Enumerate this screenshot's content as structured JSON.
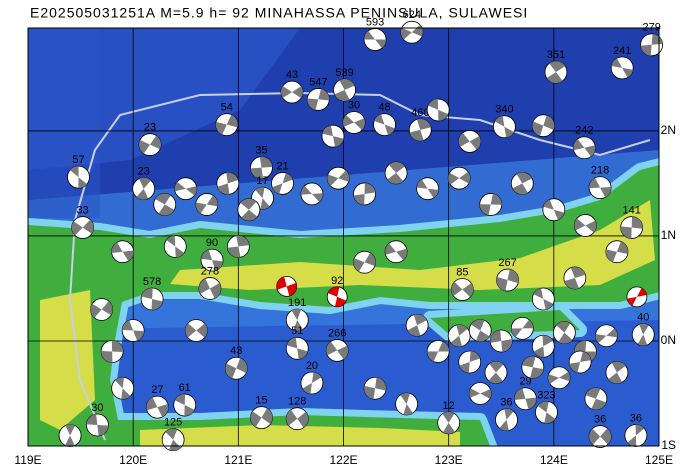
{
  "title": "E202505031251A M=5.9 h= 92 MINAHASSA PENINSULA, SULAWESI",
  "map": {
    "xlim": [
      119,
      125
    ],
    "ylim": [
      -1,
      2.98
    ],
    "xticks": [
      {
        "value": 119,
        "label": "119E"
      },
      {
        "value": 120,
        "label": "120E"
      },
      {
        "value": 121,
        "label": "121E"
      },
      {
        "value": 122,
        "label": "122E"
      },
      {
        "value": 123,
        "label": "123E"
      },
      {
        "value": 124,
        "label": "124E"
      },
      {
        "value": 125,
        "label": "125E"
      }
    ],
    "yticks": [
      {
        "value": 2,
        "label": "2N"
      },
      {
        "value": 1,
        "label": "1N"
      },
      {
        "value": 0,
        "label": "0N"
      },
      {
        "value": -1,
        "label": "1S"
      }
    ],
    "grid": true
  },
  "events": [
    {
      "lon": 122.3,
      "lat": 2.87,
      "depth": 593
    },
    {
      "lon": 122.65,
      "lat": 2.94,
      "depth": 624
    },
    {
      "lon": 124.93,
      "lat": 2.82,
      "depth": 279
    },
    {
      "lon": 124.02,
      "lat": 2.56,
      "depth": 351
    },
    {
      "lon": 124.65,
      "lat": 2.6,
      "depth": 241
    },
    {
      "lon": 121.51,
      "lat": 2.37,
      "depth": 43
    },
    {
      "lon": 121.76,
      "lat": 2.3,
      "depth": 547
    },
    {
      "lon": 122.01,
      "lat": 2.39,
      "depth": 539
    },
    {
      "lon": 122.39,
      "lat": 2.06,
      "depth": 48
    },
    {
      "lon": 122.1,
      "lat": 2.08,
      "depth": 30
    },
    {
      "lon": 120.89,
      "lat": 2.06,
      "depth": 54
    },
    {
      "lon": 122.73,
      "lat": 2.01,
      "depth": 460
    },
    {
      "lon": 123.53,
      "lat": 2.04,
      "depth": 340
    },
    {
      "lon": 124.29,
      "lat": 1.84,
      "depth": 242
    },
    {
      "lon": 120.16,
      "lat": 1.87,
      "depth": 23
    },
    {
      "lon": 121.22,
      "lat": 1.65,
      "depth": 35
    },
    {
      "lon": 119.48,
      "lat": 1.56,
      "depth": 57
    },
    {
      "lon": 124.44,
      "lat": 1.46,
      "depth": 218
    },
    {
      "lon": 119.52,
      "lat": 1.08,
      "depth": 33
    },
    {
      "lon": 124.74,
      "lat": 1.08,
      "depth": 141
    },
    {
      "lon": 121.23,
      "lat": 1.36,
      "depth": 17
    },
    {
      "lon": 120.75,
      "lat": 0.77,
      "depth": 90
    },
    {
      "lon": 123.13,
      "lat": 0.49,
      "depth": 85
    },
    {
      "lon": 123.56,
      "lat": 0.58,
      "depth": 267
    },
    {
      "lon": 121.56,
      "lat": 0.2,
      "depth": 191
    },
    {
      "lon": 121.56,
      "lat": -0.07,
      "depth": 51
    },
    {
      "lon": 121.94,
      "lat": -0.09,
      "depth": 266
    },
    {
      "lon": 120.98,
      "lat": -0.26,
      "depth": 43
    },
    {
      "lon": 124.85,
      "lat": 0.06,
      "depth": 40
    },
    {
      "lon": 120.49,
      "lat": -0.61,
      "depth": 61
    },
    {
      "lon": 120.23,
      "lat": -0.63,
      "depth": 27
    },
    {
      "lon": 121.22,
      "lat": -0.73,
      "depth": 15
    },
    {
      "lon": 123.55,
      "lat": -0.75,
      "depth": 36
    },
    {
      "lon": 123.93,
      "lat": -0.68,
      "depth": 323
    },
    {
      "lon": 123.73,
      "lat": -0.55,
      "depth": 29
    },
    {
      "lon": 124.44,
      "lat": -0.91,
      "depth": 36
    },
    {
      "lon": 124.78,
      "lat": -0.9,
      "depth": 36
    },
    {
      "lon": 120.38,
      "lat": -0.94,
      "depth": 125
    },
    {
      "lon": 119.66,
      "lat": -0.8,
      "depth": 30
    },
    {
      "lon": 121.56,
      "lat": -0.74,
      "depth": 128
    },
    {
      "lon": 121.7,
      "lat": -0.4,
      "depth": 20
    },
    {
      "lon": 123.0,
      "lat": -0.78,
      "depth": 12
    },
    {
      "lon": 120.18,
      "lat": 0.4,
      "depth": 578
    },
    {
      "lon": 120.73,
      "lat": 0.5,
      "depth": 278
    },
    {
      "lon": 121.42,
      "lat": 1.5,
      "depth": 21
    },
    {
      "lon": 120.1,
      "lat": 1.45,
      "depth": 23
    },
    {
      "lon": 121.94,
      "lat": 0.42,
      "depth": 92,
      "color": "#e00000"
    },
    {
      "lon": 121.46,
      "lat": 0.52,
      "color": "#e00000"
    },
    {
      "lon": 124.79,
      "lat": 0.42,
      "color": "#e00000"
    },
    {
      "lon": 123.1,
      "lat": 0.05
    },
    {
      "lon": 123.3,
      "lat": 0.1
    },
    {
      "lon": 123.5,
      "lat": 0.0
    },
    {
      "lon": 123.7,
      "lat": 0.12
    },
    {
      "lon": 123.9,
      "lat": -0.05
    },
    {
      "lon": 124.1,
      "lat": 0.08
    },
    {
      "lon": 124.3,
      "lat": -0.1
    },
    {
      "lon": 124.5,
      "lat": 0.05
    },
    {
      "lon": 123.2,
      "lat": -0.2
    },
    {
      "lon": 123.45,
      "lat": -0.3
    },
    {
      "lon": 123.8,
      "lat": -0.25
    },
    {
      "lon": 124.05,
      "lat": -0.35
    },
    {
      "lon": 124.25,
      "lat": -0.2
    },
    {
      "lon": 124.6,
      "lat": -0.3
    },
    {
      "lon": 124.4,
      "lat": -0.55
    },
    {
      "lon": 123.3,
      "lat": -0.5
    },
    {
      "lon": 122.9,
      "lat": -0.1
    },
    {
      "lon": 122.7,
      "lat": 0.15
    },
    {
      "lon": 120.3,
      "lat": 1.3
    },
    {
      "lon": 120.5,
      "lat": 1.45
    },
    {
      "lon": 120.7,
      "lat": 1.3
    },
    {
      "lon": 120.9,
      "lat": 1.5
    },
    {
      "lon": 121.1,
      "lat": 1.25
    },
    {
      "lon": 121.7,
      "lat": 1.4
    },
    {
      "lon": 121.95,
      "lat": 1.55
    },
    {
      "lon": 122.2,
      "lat": 1.4
    },
    {
      "lon": 122.5,
      "lat": 1.6
    },
    {
      "lon": 122.8,
      "lat": 1.45
    },
    {
      "lon": 123.1,
      "lat": 1.55
    },
    {
      "lon": 123.4,
      "lat": 1.3
    },
    {
      "lon": 123.7,
      "lat": 1.5
    },
    {
      "lon": 124.0,
      "lat": 1.25
    },
    {
      "lon": 124.3,
      "lat": 1.1
    },
    {
      "lon": 124.6,
      "lat": 0.85
    },
    {
      "lon": 124.2,
      "lat": 0.6
    },
    {
      "lon": 123.9,
      "lat": 0.4
    },
    {
      "lon": 122.5,
      "lat": 0.85
    },
    {
      "lon": 122.2,
      "lat": 0.75
    },
    {
      "lon": 121.0,
      "lat": 0.9
    },
    {
      "lon": 120.4,
      "lat": 0.9
    },
    {
      "lon": 119.9,
      "lat": 0.85
    },
    {
      "lon": 119.7,
      "lat": 0.3
    },
    {
      "lon": 119.8,
      "lat": -0.1
    },
    {
      "lon": 119.9,
      "lat": -0.45
    },
    {
      "lon": 120.0,
      "lat": 0.1
    },
    {
      "lon": 120.6,
      "lat": 0.1
    },
    {
      "lon": 122.3,
      "lat": -0.45
    },
    {
      "lon": 122.6,
      "lat": -0.6
    },
    {
      "lon": 121.9,
      "lat": 1.95
    },
    {
      "lon": 123.2,
      "lat": 1.9
    },
    {
      "lon": 123.9,
      "lat": 2.05
    },
    {
      "lon": 119.4,
      "lat": -0.9
    },
    {
      "lon": 122.9,
      "lat": 2.2
    }
  ]
}
